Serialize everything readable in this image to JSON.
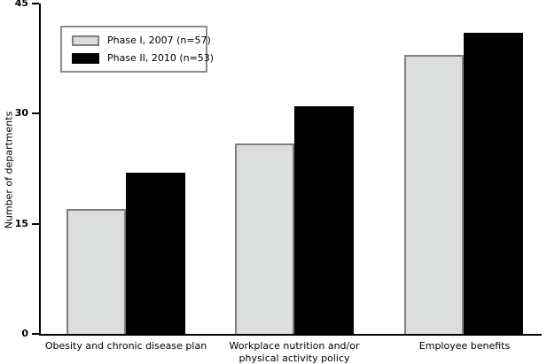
{
  "figure": {
    "y_axis_label": "Number of departments"
  },
  "legend": {
    "items": [
      {
        "label": "Phase I, 2007 (n=57)",
        "color": "#dcdddd",
        "border_color": "#7f7f7f"
      },
      {
        "label": "Phase II, 2010 (n=53)",
        "color": "#000000",
        "border_color": "#000000"
      }
    ]
  },
  "chart_data": {
    "type": "bar",
    "title": "",
    "xlabel": "",
    "ylabel": "Number of departments",
    "categories": [
      "Obesity and chronic disease plan",
      "Workplace nutrition and/or\nphysical activity policy",
      "Employee benefits"
    ],
    "series": [
      {
        "name": "Phase I, 2007 (n=57)",
        "color": "#dcdddd",
        "values": [
          17,
          26,
          38
        ]
      },
      {
        "name": "Phase II, 2010 (n=53)",
        "color": "#000000",
        "values": [
          22,
          31,
          41
        ]
      }
    ],
    "yticks": [
      0,
      15,
      30,
      45
    ],
    "ylim": [
      0,
      45
    ],
    "grid": false,
    "legend_position": "upper-left-inside",
    "bar_borders": {
      "phase1": "#7f7f7f",
      "phase2": "#000000"
    },
    "axis_color": "#000000"
  }
}
